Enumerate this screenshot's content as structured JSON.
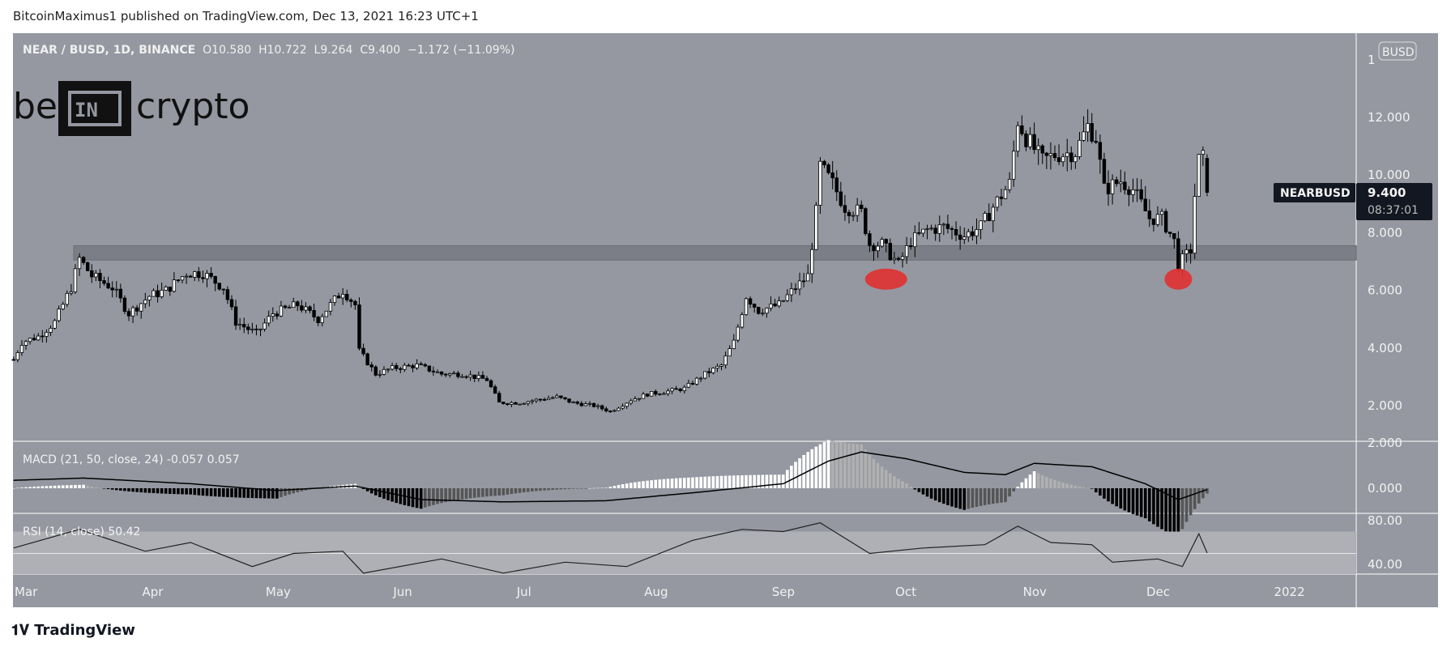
{
  "header": {
    "published": "BitcoinMaximus1 published on TradingView.com, Dec 13, 2021 16:23 UTC+1"
  },
  "legend": {
    "symbol": "NEAR / BUSD, 1D, BINANCE",
    "o_label": "O",
    "o": "10.580",
    "h_label": "H",
    "h": "10.722",
    "l_label": "L",
    "l": "9.264",
    "c_label": "C",
    "c": "9.400",
    "change": "−1.172 (−11.09%)"
  },
  "watermark": {
    "text": "be[IN]crypto"
  },
  "price_tag": {
    "symbol": "NEARBUSD",
    "price": "9.400",
    "countdown": "08:37:01"
  },
  "currency_badge": "BUSD",
  "axis_top_label": "1",
  "footer": {
    "logo": "TradingView"
  },
  "colors": {
    "background": "#9598a1",
    "candle": "#000000",
    "zone": "#7b7e86",
    "highlight": "#e03030"
  },
  "chart_data": [
    {
      "type": "candlestick",
      "title": "NEAR / BUSD, 1D, BINANCE",
      "ylim": [
        0.5,
        13.5
      ],
      "y_ticks": [
        "12.000",
        "10.000",
        "8.000",
        "6.000",
        "4.000",
        "2.000"
      ],
      "y_tick_values": [
        12,
        10,
        8,
        6,
        4,
        2
      ],
      "x_ticks": [
        "Mar",
        "Apr",
        "May",
        "Jun",
        "Jul",
        "Aug",
        "Sep",
        "Oct",
        "Nov",
        "Dec",
        "2022"
      ],
      "x_tick_dates": [
        "2021-03-01",
        "2021-04-01",
        "2021-05-01",
        "2021-06-01",
        "2021-07-01",
        "2021-08-01",
        "2021-09-01",
        "2021-10-01",
        "2021-11-01",
        "2021-12-01",
        "2022-01-01"
      ],
      "support_zone": [
        7.05,
        7.55
      ],
      "highlighted_lows": [
        {
          "date": "2021-09-26",
          "price": 6.5
        },
        {
          "date": "2021-12-06",
          "price": 6.5
        }
      ],
      "close": [
        [
          "2021-02-26",
          3.6
        ],
        [
          "2021-02-28",
          4.2
        ],
        [
          "2021-03-04",
          4.4
        ],
        [
          "2021-03-08",
          4.9
        ],
        [
          "2021-03-12",
          6.1
        ],
        [
          "2021-03-14",
          7.1
        ],
        [
          "2021-03-17",
          6.5
        ],
        [
          "2021-03-22",
          6.1
        ],
        [
          "2021-03-26",
          5.2
        ],
        [
          "2021-03-31",
          5.8
        ],
        [
          "2021-04-04",
          6.0
        ],
        [
          "2021-04-09",
          6.6
        ],
        [
          "2021-04-13",
          6.6
        ],
        [
          "2021-04-18",
          6.1
        ],
        [
          "2021-04-21",
          4.9
        ],
        [
          "2021-04-26",
          4.5
        ],
        [
          "2021-04-30",
          5.2
        ],
        [
          "2021-05-06",
          5.5
        ],
        [
          "2021-05-11",
          5.0
        ],
        [
          "2021-05-17",
          6.0
        ],
        [
          "2021-05-20",
          5.5
        ],
        [
          "2021-05-21",
          3.9
        ],
        [
          "2021-05-25",
          3.1
        ],
        [
          "2021-05-29",
          3.3
        ],
        [
          "2021-06-04",
          3.4
        ],
        [
          "2021-06-10",
          3.1
        ],
        [
          "2021-06-15",
          3.1
        ],
        [
          "2021-06-21",
          2.9
        ],
        [
          "2021-06-24",
          2.1
        ],
        [
          "2021-06-29",
          2.1
        ],
        [
          "2021-07-03",
          2.2
        ],
        [
          "2021-07-08",
          2.3
        ],
        [
          "2021-07-12",
          2.1
        ],
        [
          "2021-07-17",
          2.0
        ],
        [
          "2021-07-21",
          1.8
        ],
        [
          "2021-07-26",
          2.2
        ],
        [
          "2021-07-30",
          2.4
        ],
        [
          "2021-08-04",
          2.5
        ],
        [
          "2021-08-08",
          2.6
        ],
        [
          "2021-08-13",
          3.1
        ],
        [
          "2021-08-17",
          3.4
        ],
        [
          "2021-08-20",
          4.2
        ],
        [
          "2021-08-23",
          5.8
        ],
        [
          "2021-08-26",
          5.3
        ],
        [
          "2021-08-31",
          5.5
        ],
        [
          "2021-09-04",
          6.1
        ],
        [
          "2021-09-07",
          6.5
        ],
        [
          "2021-09-09",
          8.7
        ],
        [
          "2021-09-10",
          10.3
        ],
        [
          "2021-09-13",
          9.7
        ],
        [
          "2021-09-16",
          8.9
        ],
        [
          "2021-09-20",
          8.7
        ],
        [
          "2021-09-22",
          7.6
        ],
        [
          "2021-09-25",
          7.6
        ],
        [
          "2021-09-29",
          6.9
        ],
        [
          "2021-10-02",
          7.7
        ],
        [
          "2021-10-06",
          8.1
        ],
        [
          "2021-10-10",
          8.2
        ],
        [
          "2021-10-15",
          7.9
        ],
        [
          "2021-10-19",
          8.2
        ],
        [
          "2021-10-22",
          8.9
        ],
        [
          "2021-10-26",
          9.7
        ],
        [
          "2021-10-28",
          11.9
        ],
        [
          "2021-10-30",
          11.3
        ],
        [
          "2021-11-03",
          10.5
        ],
        [
          "2021-11-06",
          10.7
        ],
        [
          "2021-11-11",
          10.8
        ],
        [
          "2021-11-14",
          11.7
        ],
        [
          "2021-11-16",
          11.3
        ],
        [
          "2021-11-18",
          9.5
        ],
        [
          "2021-11-22",
          9.8
        ],
        [
          "2021-11-25",
          9.5
        ],
        [
          "2021-11-29",
          8.5
        ],
        [
          "2021-12-02",
          8.5
        ],
        [
          "2021-12-05",
          7.7
        ],
        [
          "2021-12-06",
          6.9
        ],
        [
          "2021-12-09",
          7.4
        ],
        [
          "2021-12-10",
          9.3
        ],
        [
          "2021-12-11",
          10.5
        ],
        [
          "2021-12-12",
          10.58
        ],
        [
          "2021-12-13",
          9.4
        ]
      ]
    },
    {
      "type": "bar",
      "title": "MACD (21, 50, close, 24)",
      "values_label": [
        "-0.057",
        "0.057"
      ],
      "y_ticks": [
        "2.000",
        "0.000"
      ],
      "y_tick_values": [
        2,
        0
      ],
      "macd": [
        [
          "2021-02-26",
          0.35
        ],
        [
          "2021-03-15",
          0.45
        ],
        [
          "2021-04-10",
          0.2
        ],
        [
          "2021-05-01",
          -0.1
        ],
        [
          "2021-05-20",
          0.1
        ],
        [
          "2021-06-05",
          -0.5
        ],
        [
          "2021-06-25",
          -0.6
        ],
        [
          "2021-07-20",
          -0.55
        ],
        [
          "2021-08-10",
          -0.2
        ],
        [
          "2021-09-01",
          0.2
        ],
        [
          "2021-09-12",
          1.2
        ],
        [
          "2021-09-20",
          1.6
        ],
        [
          "2021-10-01",
          1.3
        ],
        [
          "2021-10-15",
          0.7
        ],
        [
          "2021-10-25",
          0.6
        ],
        [
          "2021-11-01",
          1.1
        ],
        [
          "2021-11-15",
          0.95
        ],
        [
          "2021-11-28",
          0.2
        ],
        [
          "2021-12-06",
          -0.5
        ],
        [
          "2021-12-13",
          -0.057
        ]
      ]
    },
    {
      "type": "line",
      "title": "RSI (14, close)",
      "value_label": "50.42",
      "ylim": [
        38,
        84
      ],
      "band": [
        30,
        70
      ],
      "y_ticks": [
        "80.00",
        "40.00"
      ],
      "y_tick_values": [
        80,
        40
      ],
      "rsi": [
        [
          "2021-02-26",
          55
        ],
        [
          "2021-03-14",
          72
        ],
        [
          "2021-03-30",
          52
        ],
        [
          "2021-04-10",
          60
        ],
        [
          "2021-04-25",
          38
        ],
        [
          "2021-05-05",
          50
        ],
        [
          "2021-05-17",
          52
        ],
        [
          "2021-05-22",
          32
        ],
        [
          "2021-06-10",
          45
        ],
        [
          "2021-06-25",
          32
        ],
        [
          "2021-07-10",
          42
        ],
        [
          "2021-07-25",
          38
        ],
        [
          "2021-08-10",
          62
        ],
        [
          "2021-08-22",
          72
        ],
        [
          "2021-09-01",
          70
        ],
        [
          "2021-09-10",
          78
        ],
        [
          "2021-09-22",
          50
        ],
        [
          "2021-10-05",
          55
        ],
        [
          "2021-10-20",
          58
        ],
        [
          "2021-10-28",
          75
        ],
        [
          "2021-11-05",
          60
        ],
        [
          "2021-11-15",
          58
        ],
        [
          "2021-11-20",
          42
        ],
        [
          "2021-12-01",
          45
        ],
        [
          "2021-12-07",
          38
        ],
        [
          "2021-12-11",
          68
        ],
        [
          "2021-12-13",
          50.42
        ]
      ]
    }
  ]
}
